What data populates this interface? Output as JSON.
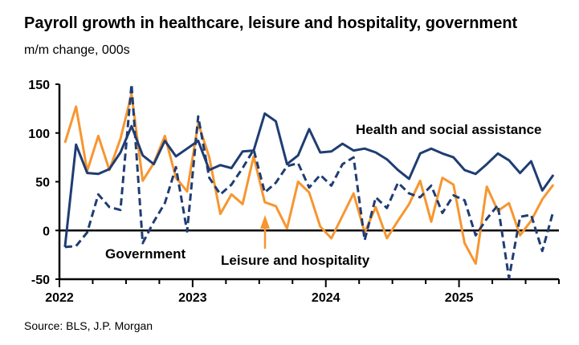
{
  "title": "Payroll growth in healthcare, leisure and hospitality, government",
  "subtitle": "m/m change, 000s",
  "source": "Source: BLS, J.P. Morgan",
  "chart_data": {
    "type": "line",
    "title": "Payroll growth in healthcare, leisure and hospitality, government",
    "ylabel": "m/m change, 000s",
    "ylim": [
      -50,
      150
    ],
    "yticks": [
      -50,
      0,
      50,
      100,
      150
    ],
    "xtick_labels": [
      "2022",
      "2023",
      "2024",
      "2025"
    ],
    "grid": false,
    "x": [
      "2022-01",
      "2022-02",
      "2022-03",
      "2022-04",
      "2022-05",
      "2022-06",
      "2022-07",
      "2022-08",
      "2022-09",
      "2022-10",
      "2022-11",
      "2022-12",
      "2023-01",
      "2023-02",
      "2023-03",
      "2023-04",
      "2023-05",
      "2023-06",
      "2023-07",
      "2023-08",
      "2023-09",
      "2023-10",
      "2023-11",
      "2023-12",
      "2024-01",
      "2024-02",
      "2024-03",
      "2024-04",
      "2024-05",
      "2024-06",
      "2024-07",
      "2024-08",
      "2024-09",
      "2024-10",
      "2024-11",
      "2024-12",
      "2025-01",
      "2025-02",
      "2025-03",
      "2025-04",
      "2025-05",
      "2025-06",
      "2025-07",
      "2025-08",
      "2025-09"
    ],
    "series": [
      {
        "name": "Health and social assistance",
        "color": "#1f3d73",
        "style": "solid",
        "values": [
          -17,
          88,
          59,
          58,
          63,
          80,
          107,
          77,
          68,
          92,
          76,
          84,
          92,
          62,
          67,
          64,
          81,
          82,
          120,
          112,
          68,
          77,
          104,
          80,
          81,
          89,
          82,
          84,
          80,
          73,
          62,
          53,
          79,
          84,
          79,
          75,
          62,
          58,
          68,
          79,
          72,
          59,
          71,
          41,
          57
        ]
      },
      {
        "name": "Leisure and hospitality",
        "color": "#f7962f",
        "style": "solid",
        "values": [
          90,
          127,
          61,
          97,
          62,
          94,
          140,
          51,
          69,
          97,
          54,
          40,
          110,
          75,
          17,
          37,
          27,
          76,
          29,
          25,
          2,
          50,
          39,
          4,
          -8,
          15,
          38,
          -2,
          24,
          -8,
          10,
          27,
          51,
          9,
          54,
          47,
          -13,
          -34,
          45,
          20,
          28,
          -5,
          10,
          32,
          47
        ]
      },
      {
        "name": "Government",
        "color": "#1f3d73",
        "style": "dashed",
        "values": [
          -17,
          -16,
          -2,
          37,
          24,
          21,
          150,
          -13,
          9,
          28,
          65,
          -1,
          117,
          54,
          37,
          47,
          64,
          83,
          39,
          49,
          66,
          69,
          44,
          57,
          46,
          68,
          75,
          -10,
          34,
          23,
          49,
          38,
          34,
          46,
          18,
          36,
          31,
          -5,
          12,
          26,
          -49,
          14,
          16,
          -21,
          20
        ]
      }
    ],
    "annotations": [
      "Health and social assistance",
      "Government",
      "Leisure and hospitality"
    ]
  }
}
